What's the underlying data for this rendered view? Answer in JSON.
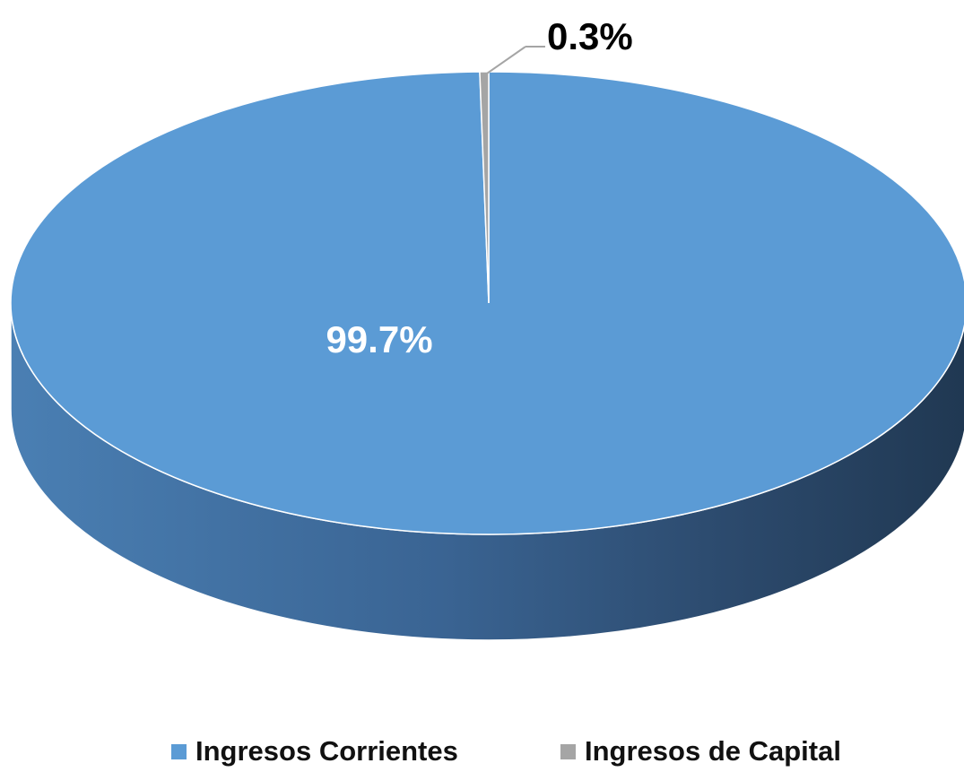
{
  "chart_data": {
    "type": "pie",
    "style": "3d",
    "title": "",
    "slices": [
      {
        "name": "Ingresos Corrientes",
        "value": 99.7,
        "label": "99.7%",
        "color": "#5b9bd5"
      },
      {
        "name": "Ingresos de Capital",
        "value": 0.3,
        "label": "0.3%",
        "color": "#a5a5a5"
      }
    ],
    "legend": {
      "position": "bottom",
      "entries": [
        "Ingresos Corrientes",
        "Ingresos de Capital"
      ]
    },
    "colors": {
      "primary_slice": "#5b9bd5",
      "secondary_slice": "#a5a5a5",
      "inner_label": "#ffffff",
      "outer_label": "#000000"
    }
  }
}
